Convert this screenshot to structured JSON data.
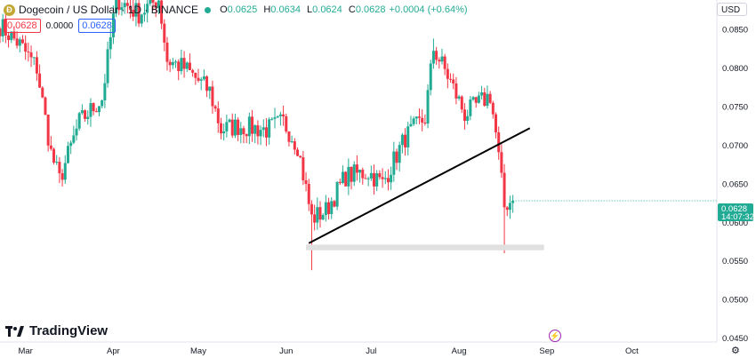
{
  "header": {
    "coin_glyph": "Ð",
    "symbol": "Dogecoin / US Dollar · 1D · BINANCE",
    "open_label": "O",
    "open": "0.0625",
    "high_label": "H",
    "high": "0.0634",
    "low_label": "L",
    "low": "0.0624",
    "close_label": "C",
    "close": "0.0628",
    "change": "+0.0004 (+0.64%)"
  },
  "price_boxes": {
    "sell": "0.0628",
    "spread": "0.0000",
    "buy": "0.0628"
  },
  "currency": "USD",
  "brand": "TradingView",
  "price_tag": {
    "price": "0.0628",
    "countdown": "14:07:32"
  },
  "colors": {
    "up": "#22ab94",
    "down": "#f23645",
    "trendline": "#000000",
    "support_zone": "#e0e0e0",
    "price_tag": "#22ab94"
  },
  "chart_data": {
    "type": "candlestick",
    "title": "",
    "xlabel": "",
    "ylabel": "",
    "y_ticks": [
      "0.0850",
      "0.0800",
      "0.0750",
      "0.0700",
      "0.0650",
      "0.0600",
      "0.0550",
      "0.0500",
      "0.0450"
    ],
    "ylim": [
      0.0445,
      0.0888
    ],
    "x_ticks": [
      {
        "label": "Mar",
        "date": "2023-03-01"
      },
      {
        "label": "Apr",
        "date": "2023-04-01"
      },
      {
        "label": "May",
        "date": "2023-05-01"
      },
      {
        "label": "Jun",
        "date": "2023-06-01"
      },
      {
        "label": "Jul",
        "date": "2023-07-01"
      },
      {
        "label": "Aug",
        "date": "2023-08-01"
      },
      {
        "label": "Sep",
        "date": "2023-09-01"
      },
      {
        "label": "Oct",
        "date": "2023-10-01"
      }
    ],
    "xlim": [
      "2023-02-20",
      "2023-10-31"
    ],
    "grid": false,
    "last_price": 0.0628,
    "anchors": [
      {
        "date": "2023-02-20",
        "close": 0.0855
      },
      {
        "date": "2023-02-27",
        "close": 0.083
      },
      {
        "date": "2023-03-05",
        "close": 0.08
      },
      {
        "date": "2023-03-10",
        "close": 0.069
      },
      {
        "date": "2023-03-13",
        "close": 0.0655
      },
      {
        "date": "2023-03-20",
        "close": 0.073
      },
      {
        "date": "2023-03-28",
        "close": 0.076
      },
      {
        "date": "2023-04-02",
        "close": 0.089
      },
      {
        "date": "2023-04-10",
        "close": 0.087
      },
      {
        "date": "2023-04-17",
        "close": 0.089
      },
      {
        "date": "2023-04-20",
        "close": 0.081
      },
      {
        "date": "2023-04-26",
        "close": 0.08
      },
      {
        "date": "2023-05-05",
        "close": 0.077
      },
      {
        "date": "2023-05-09",
        "close": 0.072
      },
      {
        "date": "2023-05-15",
        "close": 0.0725
      },
      {
        "date": "2023-05-25",
        "close": 0.072
      },
      {
        "date": "2023-05-31",
        "close": 0.073
      },
      {
        "date": "2023-06-05",
        "close": 0.07
      },
      {
        "date": "2023-06-10",
        "close": 0.0605
      },
      {
        "date": "2023-06-15",
        "close": 0.0615
      },
      {
        "date": "2023-06-22",
        "close": 0.066
      },
      {
        "date": "2023-06-30",
        "close": 0.0665
      },
      {
        "date": "2023-07-05",
        "close": 0.065
      },
      {
        "date": "2023-07-13",
        "close": 0.071
      },
      {
        "date": "2023-07-20",
        "close": 0.0735
      },
      {
        "date": "2023-07-23",
        "close": 0.0825
      },
      {
        "date": "2023-07-28",
        "close": 0.079
      },
      {
        "date": "2023-08-03",
        "close": 0.074
      },
      {
        "date": "2023-08-12",
        "close": 0.0765
      },
      {
        "date": "2023-08-14",
        "close": 0.0715
      },
      {
        "date": "2023-08-17",
        "close": 0.062
      },
      {
        "date": "2023-08-18",
        "close": 0.0625
      },
      {
        "date": "2023-08-20",
        "close": 0.0628
      }
    ],
    "wick_extremes": [
      {
        "date": "2023-06-10",
        "low": 0.0538
      },
      {
        "date": "2023-07-23",
        "high": 0.0838
      },
      {
        "date": "2023-08-17",
        "low": 0.056
      }
    ],
    "trendline": [
      {
        "date": "2023-06-09",
        "price": 0.0573
      },
      {
        "date": "2023-08-26",
        "price": 0.0722
      }
    ],
    "support_zone": {
      "from": "2023-06-08",
      "to": "2023-08-31",
      "low": 0.0565,
      "high": 0.057
    }
  }
}
